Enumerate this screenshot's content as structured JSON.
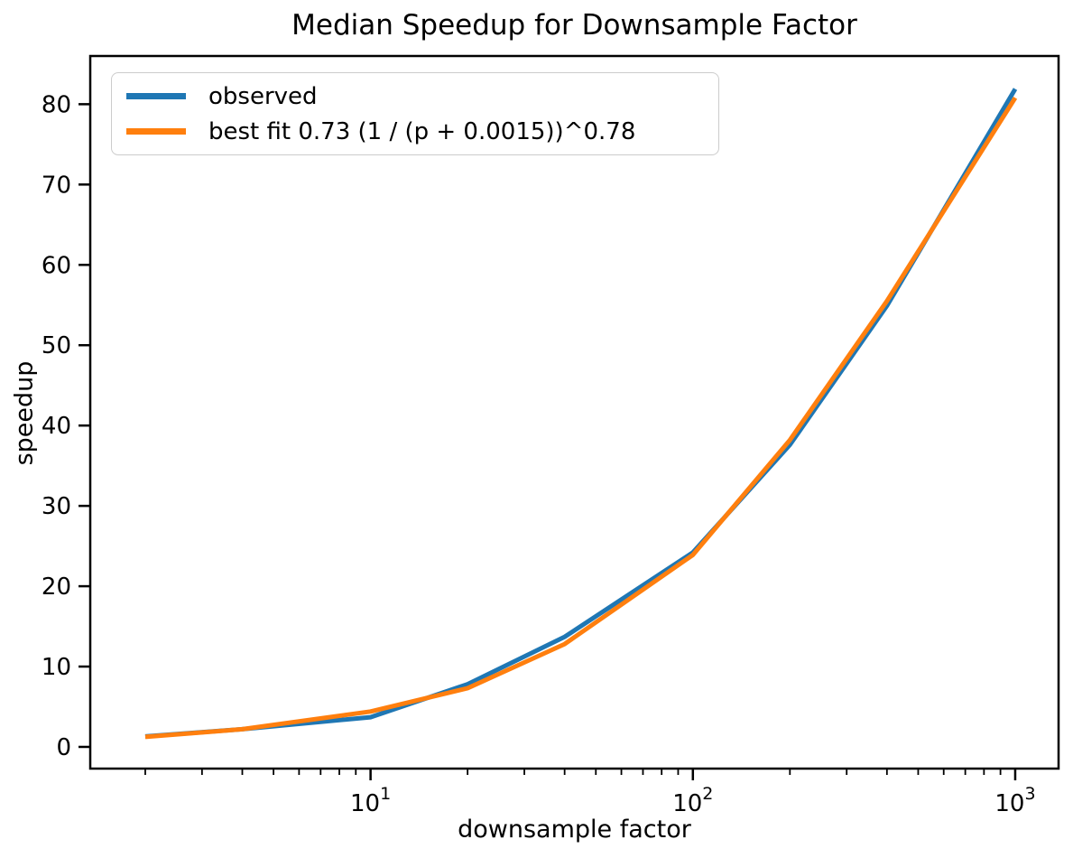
{
  "figure": {
    "title": "Median Speedup for Downsample Factor",
    "xlabel": "downsample factor",
    "ylabel": "speedup"
  },
  "chart_data": {
    "type": "line",
    "title": "Median Speedup for Downsample Factor",
    "xlabel": "downsample factor",
    "ylabel": "speedup",
    "x_scale": "log",
    "grid": false,
    "x": [
      2,
      4,
      10,
      20,
      40,
      100,
      200,
      400,
      1000
    ],
    "series": [
      {
        "name": "observed",
        "color": "#1f77b4",
        "values": [
          1.3,
          2.2,
          3.7,
          7.8,
          13.7,
          24.2,
          37.6,
          54.9,
          81.9
        ]
      },
      {
        "name": "best fit 0.73 (1 / (p + 0.0015))^0.78",
        "color": "#ff7f0e",
        "values": [
          1.25,
          2.2,
          4.4,
          7.3,
          12.8,
          23.9,
          38.2,
          55.5,
          80.8
        ]
      }
    ],
    "xlim": [
      1.35,
      1363
    ],
    "ylim": [
      -2.7,
      86.0
    ],
    "x_major_ticks": [
      10,
      100,
      1000
    ],
    "x_major_tick_labels": [
      {
        "base": "10",
        "exp": "1"
      },
      {
        "base": "10",
        "exp": "2"
      },
      {
        "base": "10",
        "exp": "3"
      }
    ],
    "y_ticks": [
      0,
      10,
      20,
      30,
      40,
      50,
      60,
      70,
      80
    ],
    "legend": {
      "position": "upper left",
      "frame": true
    },
    "axis_color": "#000000",
    "line_width": 5
  }
}
